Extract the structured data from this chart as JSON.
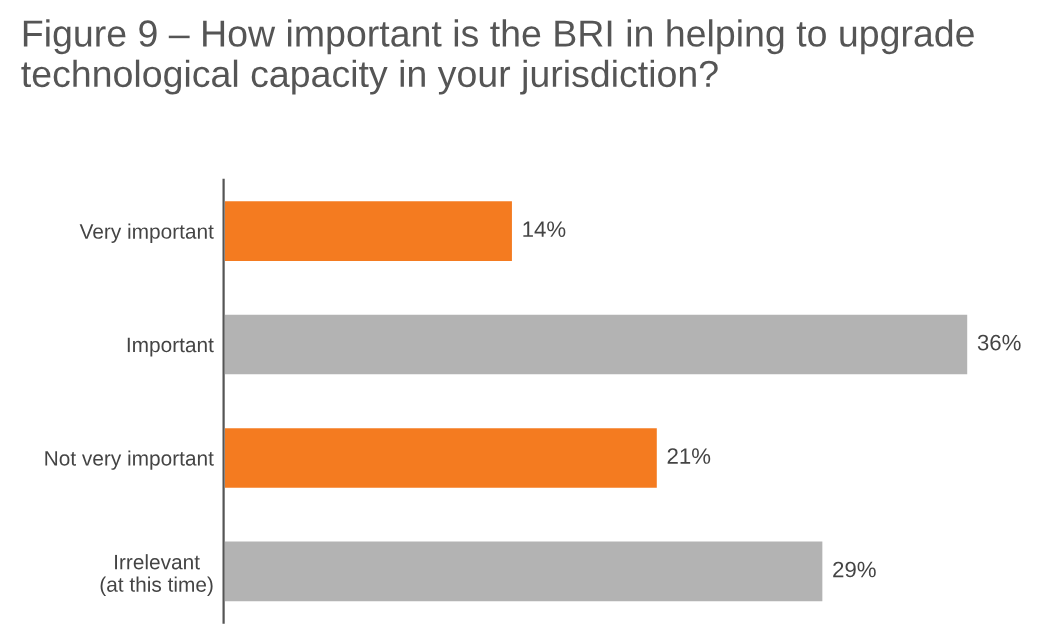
{
  "chart_data": {
    "type": "bar",
    "orientation": "horizontal",
    "title": "Figure 9 – How important is the BRI in helping to upgrade technological capacity in your jurisdiction?",
    "categories": [
      "Very important",
      "Important",
      "Not very important",
      "Irrelevant\n(at this time)"
    ],
    "values": [
      14,
      36,
      21,
      29
    ],
    "colors": [
      "#f47b20",
      "#b3b3b3",
      "#f47b20",
      "#b3b3b3"
    ],
    "value_labels": [
      "14%",
      "36%",
      "21%",
      "29%"
    ],
    "grid": false,
    "legend": false
  }
}
